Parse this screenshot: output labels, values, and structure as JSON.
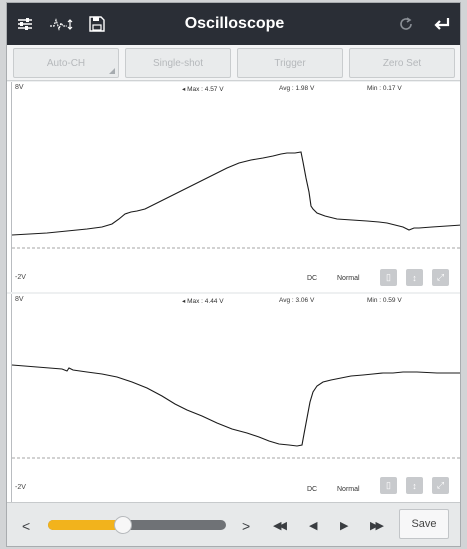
{
  "titlebar": {
    "title": "Oscilloscope",
    "icons": [
      "sliders-icon",
      "waveform-settings-icon",
      "save-file-icon",
      "refresh-icon",
      "back-icon"
    ]
  },
  "mode_buttons": {
    "auto_ch": "Auto-CH",
    "single_shot": "Single-shot",
    "trigger": "Trigger",
    "zero_set": "Zero Set"
  },
  "channels": [
    {
      "scale_top": "8V",
      "scale_bottom": "-2V",
      "max": "Max : 4.57 V",
      "avg": "Avg : 1.98 V",
      "min": "Min : 0.17 V",
      "coupling": "DC",
      "mode": "Normal"
    },
    {
      "scale_top": "8V",
      "scale_bottom": "-2V",
      "max": "Max : 4.44 V",
      "avg": "Avg : 3.06 V",
      "min": "Min : 0.59 V",
      "coupling": "DC",
      "mode": "Normal"
    }
  ],
  "playback": {
    "prev": "<",
    "next": ">",
    "progress_fraction": 0.42,
    "fast_rewind": "◀◀",
    "step_back": "◀",
    "play": "▶",
    "fast_forward": "▶▶",
    "save_label": "Save"
  },
  "colors": {
    "titlebar": "#2a2e36",
    "slider_fill": "#f2b31c",
    "trace": "#1b1b1b"
  }
}
